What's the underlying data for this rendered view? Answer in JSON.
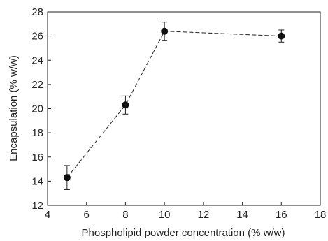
{
  "chart_data": {
    "type": "scatter",
    "title": "",
    "xlabel": "Phospholipid powder concentration (% w/w)",
    "ylabel": "Encapsulation (% w/w)",
    "xlim": [
      4,
      18
    ],
    "ylim": [
      12,
      28
    ],
    "x_ticks": [
      "4",
      "6",
      "8",
      "10",
      "12",
      "14",
      "16",
      "18"
    ],
    "y_ticks": [
      "12",
      "14",
      "16",
      "18",
      "20",
      "22",
      "24",
      "26",
      "28"
    ],
    "grid": false,
    "connect_points": "dashed",
    "marker": "filled-circle",
    "series": [
      {
        "x": [
          5,
          8,
          10,
          16
        ],
        "y": [
          14.3,
          20.3,
          26.4,
          26.0
        ],
        "error": [
          1.0,
          0.75,
          0.75,
          0.5
        ]
      }
    ]
  }
}
